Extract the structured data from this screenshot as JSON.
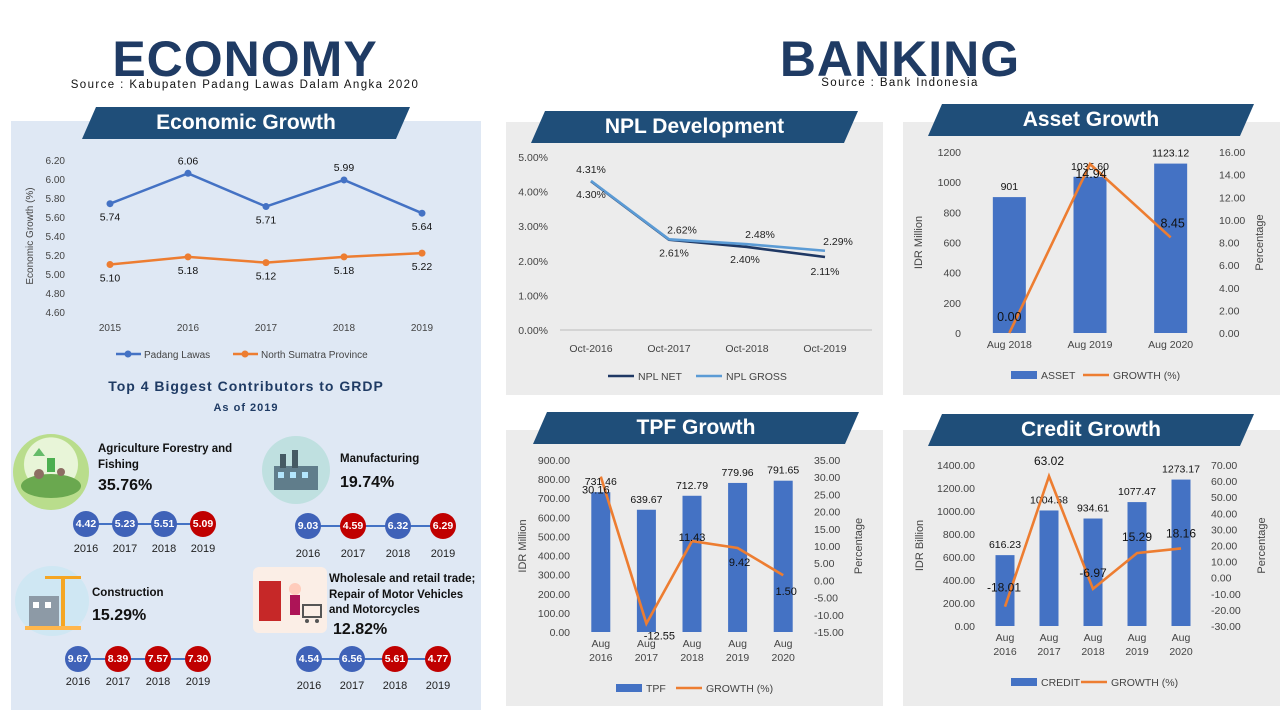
{
  "economy": {
    "title": "ECONOMY",
    "source": "Source : Kabupaten Padang Lawas Dalam Angka 2020",
    "growth_banner": "Economic Growth",
    "contrib_title": "Top 4 Biggest Contributors to GRDP",
    "contrib_sub": "As of 2019",
    "sectors": [
      {
        "name": "Agriculture Forestry and Fishing",
        "share": "35.76%",
        "icon": "farm-icon",
        "values": [
          "4.42",
          "5.23",
          "5.51",
          "5.09"
        ],
        "colors": [
          "blue",
          "blue",
          "blue",
          "red"
        ],
        "years": [
          "2016",
          "2017",
          "2018",
          "2019"
        ]
      },
      {
        "name": "Manufacturing",
        "share": "19.74%",
        "icon": "factory-icon",
        "values": [
          "9.03",
          "4.59",
          "6.32",
          "6.29"
        ],
        "colors": [
          "blue",
          "red",
          "blue",
          "red"
        ],
        "years": [
          "2016",
          "2017",
          "2018",
          "2019"
        ]
      },
      {
        "name": "Construction",
        "share": "15.29%",
        "icon": "construction-icon",
        "values": [
          "9.67",
          "8.39",
          "7.57",
          "7.30"
        ],
        "colors": [
          "blue",
          "red",
          "red",
          "red"
        ],
        "years": [
          "2016",
          "2017",
          "2018",
          "2019"
        ]
      },
      {
        "name": "Wholesale and retail trade; Repair of Motor Vehicles and Motorcycles",
        "share": "12.82%",
        "icon": "shopping-icon",
        "values": [
          "4.54",
          "6.56",
          "5.61",
          "4.77"
        ],
        "colors": [
          "blue",
          "blue",
          "red",
          "red"
        ],
        "years": [
          "2016",
          "2017",
          "2018",
          "2019"
        ]
      }
    ]
  },
  "banking": {
    "title": "BANKING",
    "source": "Source : Bank Indonesia"
  },
  "colors": {
    "navy": "#1f4e79",
    "blue": "#4472c4",
    "orange": "#ed7d31",
    "red": "#c00000",
    "npl_net": "#1f3864",
    "npl_gross": "#5b9bd5"
  },
  "chart_data": [
    {
      "id": "economic-growth",
      "title": "Economic Growth",
      "type": "line",
      "x": [
        "2015",
        "2016",
        "2017",
        "2018",
        "2019"
      ],
      "ylabel": "Economic Growth (%)",
      "ylim": [
        4.6,
        6.2
      ],
      "yticks": [
        "4.60",
        "4.80",
        "5.00",
        "5.20",
        "5.40",
        "5.60",
        "5.80",
        "6.00",
        "6.20"
      ],
      "series": [
        {
          "name": "Padang Lawas",
          "values": [
            5.74,
            6.06,
            5.71,
            5.99,
            5.64
          ],
          "labels": [
            "5.74",
            "6.06",
            "5.71",
            "5.99",
            "5.64"
          ]
        },
        {
          "name": "North Sumatra Province",
          "values": [
            5.1,
            5.18,
            5.12,
            5.18,
            5.22
          ],
          "labels": [
            "5.10",
            "5.18",
            "5.12",
            "5.18",
            "5.22"
          ]
        }
      ],
      "legend": "bottom"
    },
    {
      "id": "npl",
      "title": "NPL Development",
      "type": "line",
      "x": [
        "Oct-2016",
        "Oct-2017",
        "Oct-2018",
        "Oct-2019"
      ],
      "ylim": [
        0,
        5
      ],
      "yticks": [
        "0.00%",
        "1.00%",
        "2.00%",
        "3.00%",
        "4.00%",
        "5.00%"
      ],
      "series": [
        {
          "name": "NPL NET",
          "values": [
            4.3,
            2.61,
            2.4,
            2.11
          ],
          "labels": [
            "4.30%",
            "2.61%",
            "2.40%",
            "2.11%"
          ]
        },
        {
          "name": "NPL GROSS",
          "values": [
            4.31,
            2.62,
            2.48,
            2.29
          ],
          "labels": [
            "4.31%",
            "2.62%",
            "2.48%",
            "2.29%"
          ]
        }
      ],
      "legend": "bottom"
    },
    {
      "id": "asset",
      "title": "Asset Growth",
      "type": "bar",
      "categories": [
        "Aug 2018",
        "Aug 2019",
        "Aug 2020"
      ],
      "ylabel": "IDR Million",
      "y2label": "Percentage",
      "ylim": [
        0,
        1200
      ],
      "y2lim": [
        0,
        16
      ],
      "yticks": [
        "0",
        "200",
        "400",
        "600",
        "800",
        "1000",
        "1200"
      ],
      "y2ticks": [
        "0.00",
        "2.00",
        "4.00",
        "6.00",
        "8.00",
        "10.00",
        "12.00",
        "14.00",
        "16.00"
      ],
      "series": [
        {
          "name": "ASSET",
          "kind": "bar",
          "values": [
            901,
            1035.6,
            1123.12
          ],
          "labels": [
            "901",
            "1035.60",
            "1123.12"
          ]
        },
        {
          "name": "GROWTH (%)",
          "kind": "line",
          "values": [
            0.0,
            14.94,
            8.45
          ],
          "labels": [
            "0.00",
            "14.94",
            "8.45"
          ]
        }
      ],
      "legend": "bottom"
    },
    {
      "id": "tpf",
      "title": "TPF Growth",
      "type": "bar",
      "categories": [
        "Aug\n2016",
        "Aug\n2017",
        "Aug\n2018",
        "Aug\n2019",
        "Aug\n2020"
      ],
      "ylabel": "IDR Million",
      "y2label": "Percentage",
      "ylim": [
        0,
        900
      ],
      "y2lim": [
        -15,
        35
      ],
      "yticks": [
        "0.00",
        "100.00",
        "200.00",
        "300.00",
        "400.00",
        "500.00",
        "600.00",
        "700.00",
        "800.00",
        "900.00"
      ],
      "y2ticks": [
        "-15.00",
        "-10.00",
        "-5.00",
        "0.00",
        "5.00",
        "10.00",
        "15.00",
        "20.00",
        "25.00",
        "30.00",
        "35.00"
      ],
      "series": [
        {
          "name": "TPF",
          "kind": "bar",
          "values": [
            731.46,
            639.67,
            712.79,
            779.96,
            791.65
          ],
          "labels": [
            "731.46",
            "639.67",
            "712.79",
            "779.96",
            "791.65"
          ]
        },
        {
          "name": "GROWTH (%)",
          "kind": "line",
          "values": [
            30.16,
            -12.55,
            11.43,
            9.42,
            1.5
          ],
          "labels": [
            "30.16",
            "-12.55",
            "11.43",
            "9.42",
            "1.50"
          ]
        }
      ],
      "legend": "bottom"
    },
    {
      "id": "credit",
      "title": "Credit Growth",
      "type": "bar",
      "categories": [
        "Aug\n2016",
        "Aug\n2017",
        "Aug\n2018",
        "Aug\n2019",
        "Aug\n2020"
      ],
      "ylabel": "IDR Billion",
      "y2label": "Percentage",
      "ylim": [
        0,
        1400
      ],
      "y2lim": [
        -30,
        70
      ],
      "yticks": [
        "0.00",
        "200.00",
        "400.00",
        "600.00",
        "800.00",
        "1000.00",
        "1200.00",
        "1400.00"
      ],
      "y2ticks": [
        "-30.00",
        "-20.00",
        "-10.00",
        "0.00",
        "10.00",
        "20.00",
        "30.00",
        "40.00",
        "50.00",
        "60.00",
        "70.00"
      ],
      "series": [
        {
          "name": "CREDIT",
          "kind": "bar",
          "values": [
            616.23,
            1004.58,
            934.61,
            1077.47,
            1273.17
          ],
          "labels": [
            "616.23",
            "1004.58",
            "934.61",
            "1077.47",
            "1273.17"
          ]
        },
        {
          "name": "GROWTH (%)",
          "kind": "line",
          "values": [
            -18.01,
            63.02,
            -6.97,
            15.29,
            18.16
          ],
          "labels": [
            "-18.01",
            "63.02",
            "-6.97",
            "15.29",
            "18.16"
          ]
        }
      ],
      "legend": "bottom"
    }
  ]
}
